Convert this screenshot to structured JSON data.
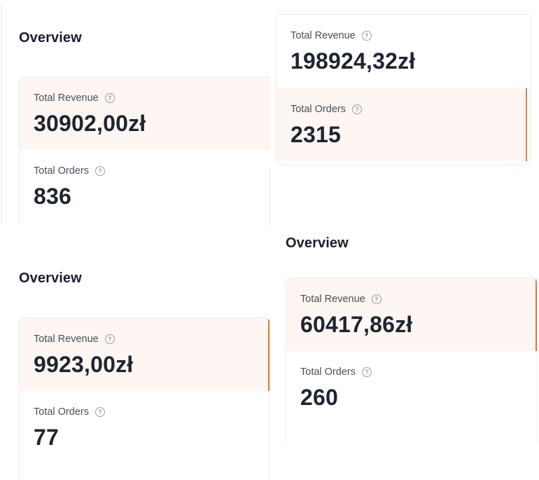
{
  "panels": [
    {
      "title": "Overview",
      "metrics": [
        {
          "label": "Total Revenue",
          "value": "30902,00zł",
          "active": true
        },
        {
          "label": "Total Orders",
          "value": "836",
          "active": false
        }
      ]
    },
    {
      "title": "",
      "metrics": [
        {
          "label": "Total Revenue",
          "value": "198924,32zł",
          "active": false
        },
        {
          "label": "Total Orders",
          "value": "2315",
          "active": true
        }
      ]
    },
    {
      "title": "Overview",
      "metrics": [
        {
          "label": "Total Revenue",
          "value": "9923,00zł",
          "active": true
        },
        {
          "label": "Total Orders",
          "value": "77",
          "active": false
        }
      ]
    },
    {
      "title": "Overview",
      "metrics": [
        {
          "label": "Total Revenue",
          "value": "60417,86zł",
          "active": true
        },
        {
          "label": "Total Orders",
          "value": "260",
          "active": false
        }
      ]
    }
  ],
  "icons": {
    "help": "question-circle-icon"
  },
  "colors": {
    "accent": "#e27a3f",
    "active_bg": "#fdf6f2",
    "text": "#1f2430"
  }
}
